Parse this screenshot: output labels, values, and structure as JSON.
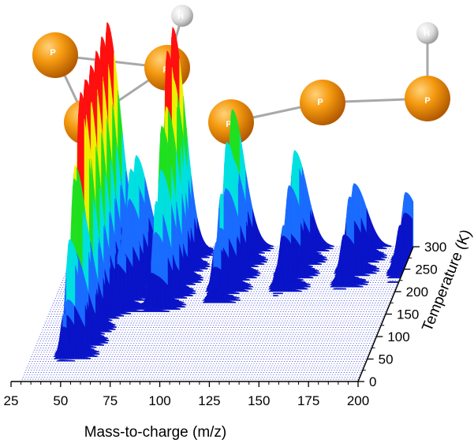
{
  "molecules": {
    "cyclic": {
      "atoms": [
        {
          "element": "P"
        },
        {
          "element": "P"
        },
        {
          "element": "P"
        },
        {
          "element": "H"
        }
      ]
    },
    "chain": {
      "atoms": [
        {
          "element": "P"
        },
        {
          "element": "P"
        },
        {
          "element": "P"
        },
        {
          "element": "H"
        }
      ]
    }
  },
  "colors": {
    "phosphorus": "#f28c00",
    "hydrogen": "#d9d9d9",
    "bond": "#a8a8a8",
    "colormap": [
      "#0a14c8",
      "#1a6cff",
      "#00e0e0",
      "#20e020",
      "#f0f000",
      "#ff1010"
    ]
  },
  "chart_data": {
    "type": "3d-waterfall",
    "xlabel": "Mass-to-charge (m/z)",
    "ylabel": "Temperature (K)",
    "x_ticks": [
      25,
      50,
      75,
      100,
      125,
      150,
      175,
      200
    ],
    "y_ticks": [
      0,
      50,
      100,
      150,
      200,
      250,
      300
    ],
    "xlim": [
      25,
      200
    ],
    "ylim": [
      0,
      300
    ],
    "peaks": [
      {
        "mz": 46,
        "t_on": 40,
        "height": 1.0
      },
      {
        "mz": 62,
        "t_on": 140,
        "height": 0.42
      },
      {
        "mz": 80,
        "t_on": 150,
        "height": 0.95
      },
      {
        "mz": 109,
        "t_on": 170,
        "height": 0.6
      },
      {
        "mz": 140,
        "t_on": 185,
        "height": 0.42
      },
      {
        "mz": 170,
        "t_on": 200,
        "height": 0.38
      },
      {
        "mz": 196,
        "t_on": 215,
        "height": 0.3
      }
    ]
  }
}
